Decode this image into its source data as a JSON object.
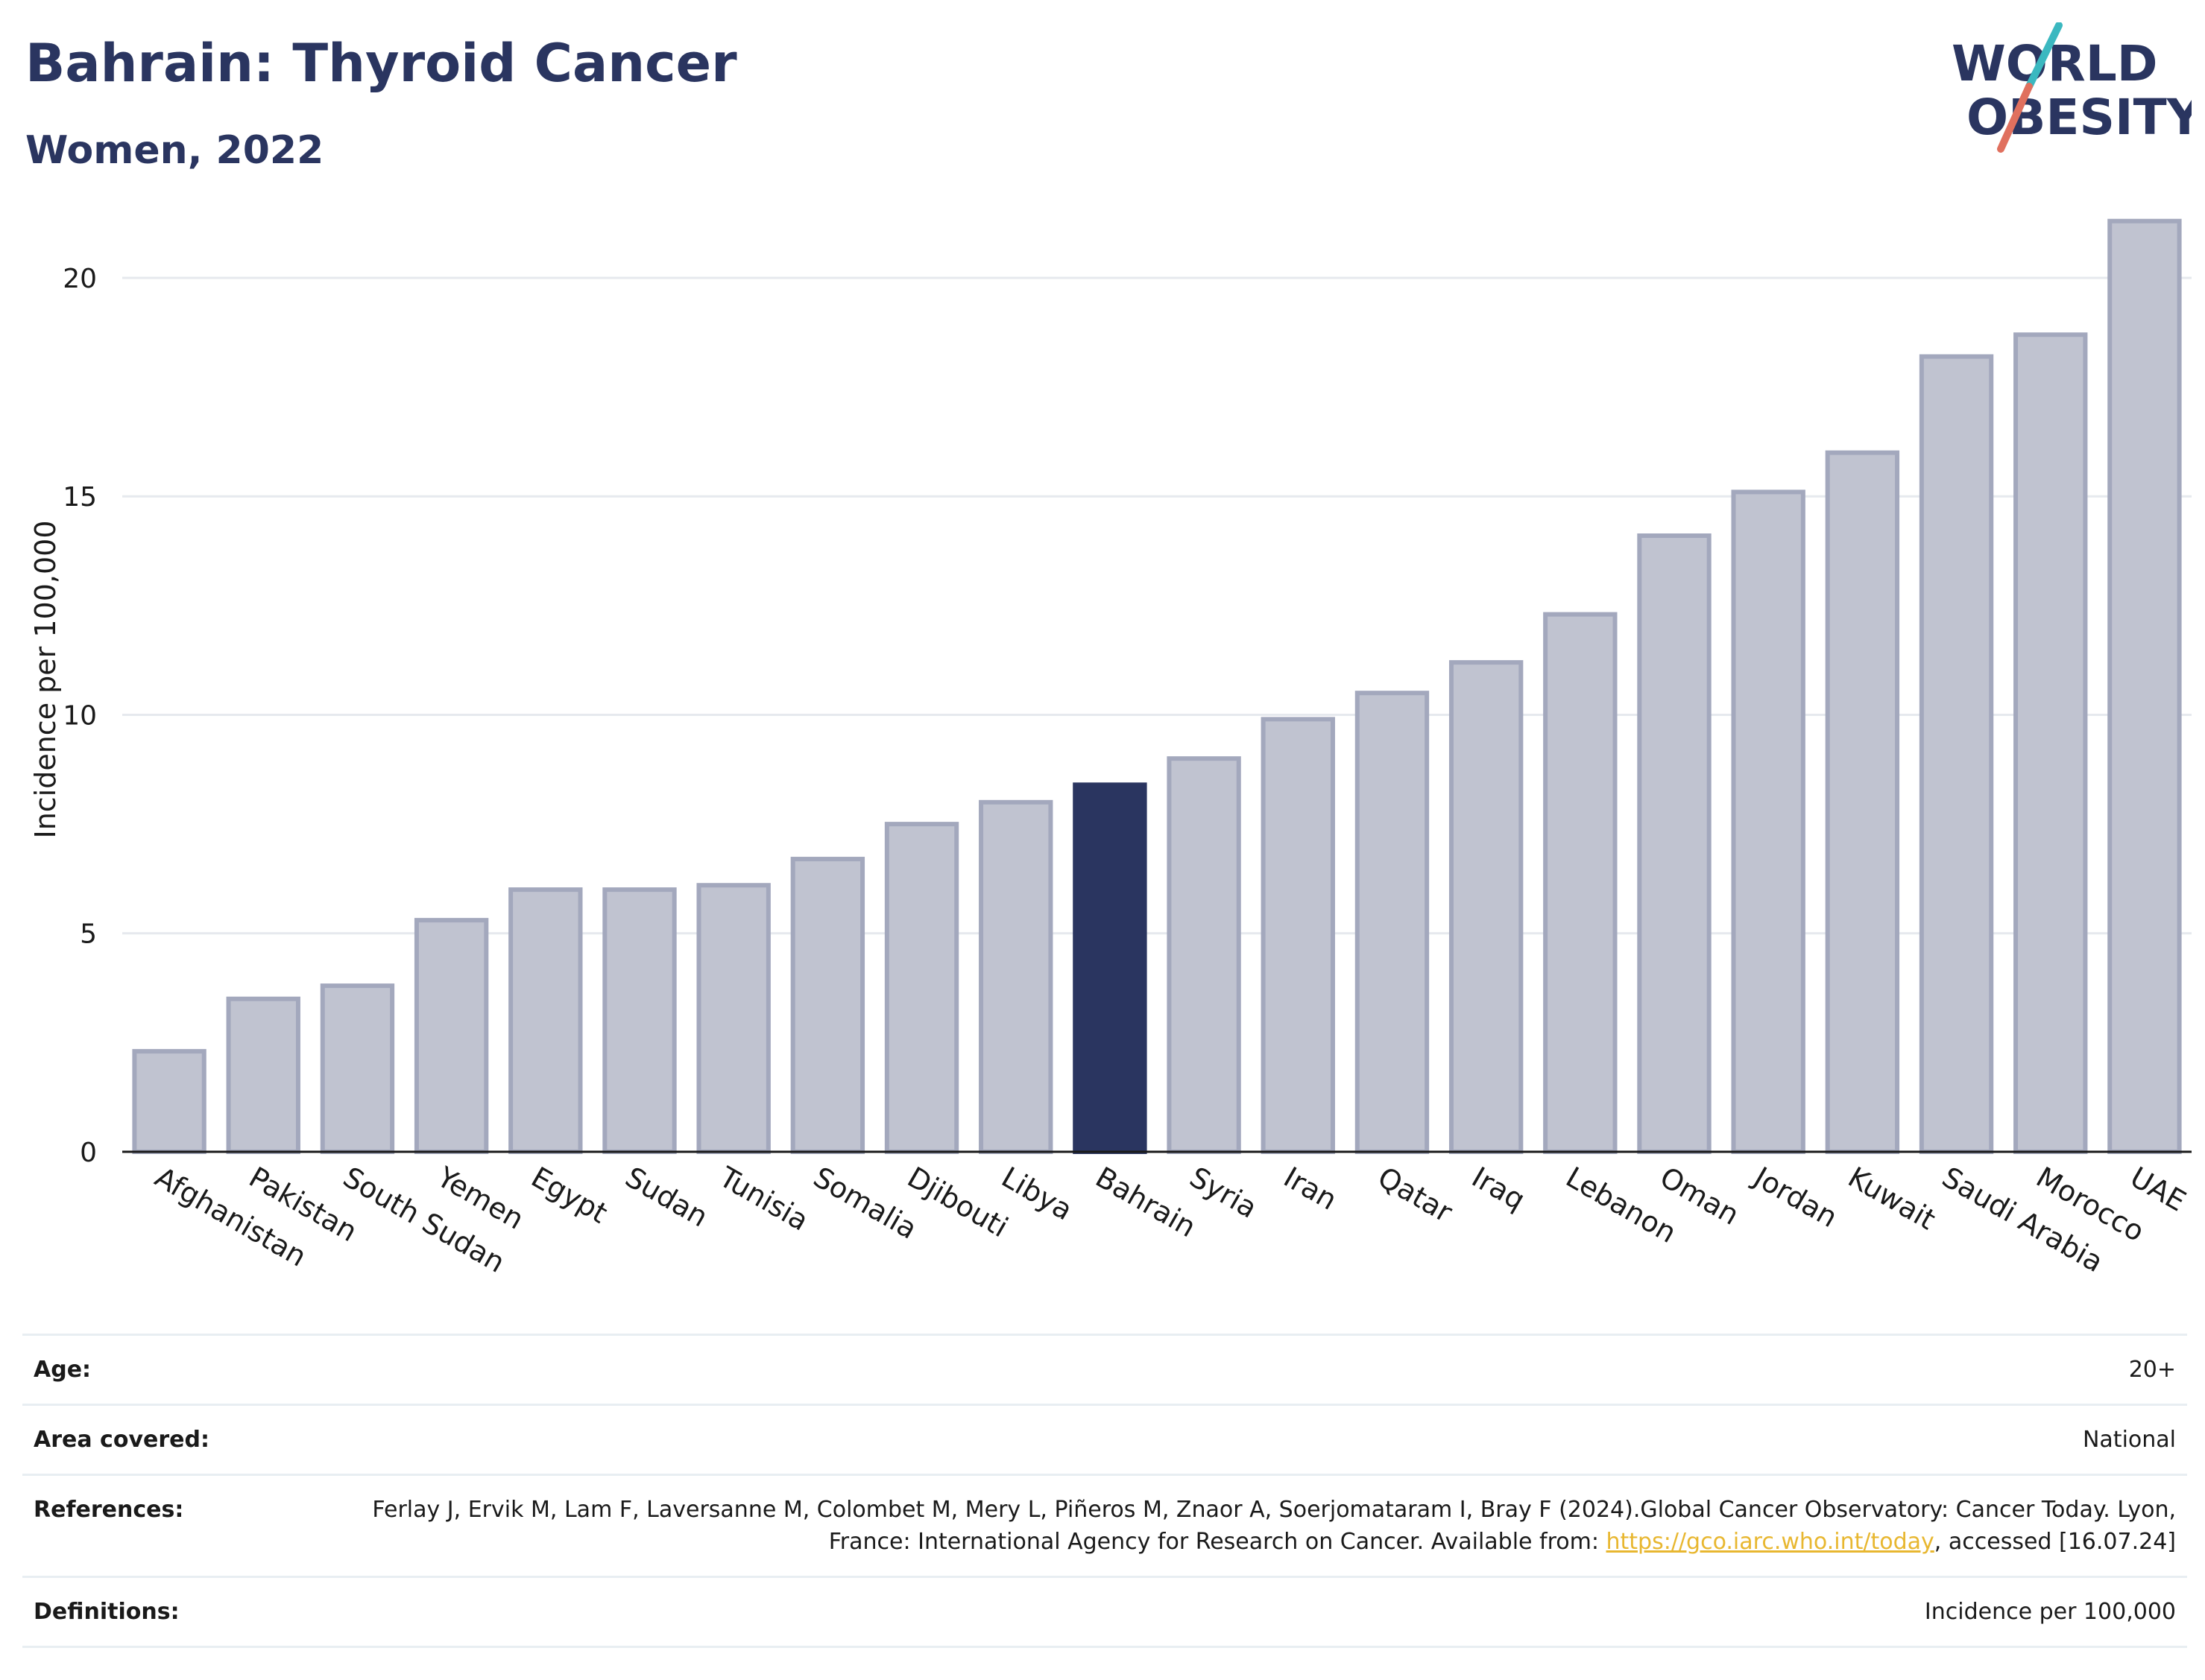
{
  "header": {
    "title": "Bahrain: Thyroid Cancer",
    "subtitle": "Women, 2022"
  },
  "logo": {
    "line1": "WORLD",
    "line2": "OBESITY",
    "text_color": "#2a3560",
    "slash_colors": [
      "#3bb8c0",
      "#e0705e"
    ]
  },
  "chart_data": {
    "type": "bar",
    "ylabel": "Incidence per 100,000",
    "ylim": [
      0,
      21.5
    ],
    "yticks": [
      0,
      5,
      10,
      15,
      20
    ],
    "grid": true,
    "highlight": "Bahrain",
    "colors": {
      "bar": "#c0c3d0",
      "bar_border": "#a3a8bd",
      "highlight": "#2a3560"
    },
    "categories": [
      "Afghanistan",
      "Pakistan",
      "South Sudan",
      "Yemen",
      "Egypt",
      "Sudan",
      "Tunisia",
      "Somalia",
      "Djibouti",
      "Libya",
      "Bahrain",
      "Syria",
      "Iran",
      "Qatar",
      "Iraq",
      "Lebanon",
      "Oman",
      "Jordan",
      "Kuwait",
      "Saudi Arabia",
      "Morocco",
      "UAE"
    ],
    "values": [
      2.3,
      3.5,
      3.8,
      5.3,
      6.0,
      6.0,
      6.1,
      6.7,
      7.5,
      8.0,
      8.4,
      9.0,
      9.9,
      10.5,
      11.2,
      12.3,
      14.1,
      15.1,
      16.0,
      18.2,
      18.7,
      21.3
    ]
  },
  "meta": {
    "age_label": "Age:",
    "age_value": "20+",
    "area_label": "Area covered:",
    "area_value": "National",
    "references_label": "References:",
    "references_text_before": "Ferlay J, Ervik M, Lam F, Laversanne M, Colombet M, Mery L, Piñeros M, Znaor A, Soerjomataram I, Bray F (2024).Global Cancer Observatory: Cancer Today. Lyon, France: International Agency for Research on Cancer. Available from: ",
    "references_link": "https://gco.iarc.who.int/today",
    "references_text_after": ", accessed [16.07.24]",
    "definitions_label": "Definitions:",
    "definitions_value": "Incidence per 100,000"
  }
}
